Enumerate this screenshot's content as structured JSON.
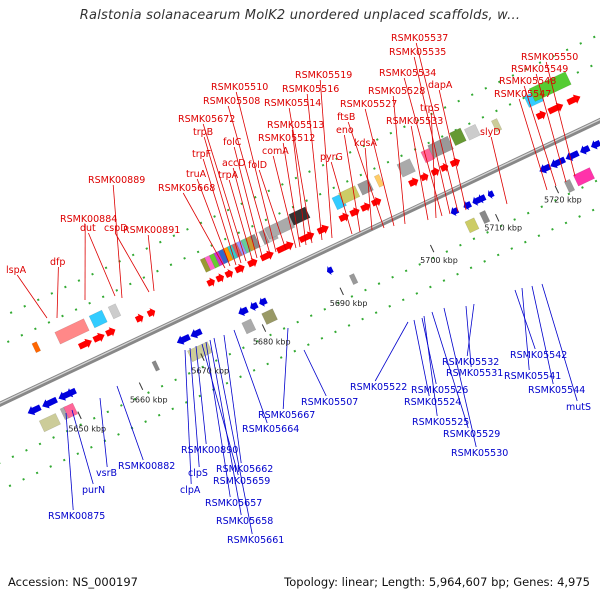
{
  "title": "Ralstonia solanacearum MolK2 unordered unplaced scaffolds, w...",
  "footer": {
    "accession": "Accession: NS_000197",
    "summary": "Topology: linear; Length: 5,964,607 bp; Genes: 4,975"
  },
  "colors": {
    "top_label": "#dd0000",
    "bottom_label": "#0000cc",
    "forward_arrow": "#ff0000",
    "reverse_arrow": "#0000dd",
    "backbone": "#888888"
  },
  "scale_ticks": [
    {
      "label": "5650 kbp"
    },
    {
      "label": "5660 kbp"
    },
    {
      "label": "5670 kbp"
    },
    {
      "label": "5680 kbp"
    },
    {
      "label": "5690 kbp"
    },
    {
      "label": "5700 kbp"
    },
    {
      "label": "5710 kbp"
    },
    {
      "label": "5720 kbp"
    }
  ],
  "top_labels": [
    {
      "text": "lspA"
    },
    {
      "text": "dfp"
    },
    {
      "text": "RSMK00884"
    },
    {
      "text": "dut"
    },
    {
      "text": "RSMK00889"
    },
    {
      "text": "cspD"
    },
    {
      "text": "RSMK00891"
    },
    {
      "text": "RSMK05668"
    },
    {
      "text": "truA"
    },
    {
      "text": "trpF"
    },
    {
      "text": "trpB"
    },
    {
      "text": "RSMK05672"
    },
    {
      "text": "trpA"
    },
    {
      "text": "accD"
    },
    {
      "text": "folC"
    },
    {
      "text": "RSMK05508"
    },
    {
      "text": "RSMK05510"
    },
    {
      "text": "folD"
    },
    {
      "text": "comA"
    },
    {
      "text": "RSMK05512"
    },
    {
      "text": "RSMK05513"
    },
    {
      "text": "RSMK05514"
    },
    {
      "text": "RSMK05516"
    },
    {
      "text": "RSMK05519"
    },
    {
      "text": "pyrG"
    },
    {
      "text": "eno"
    },
    {
      "text": "kdsA"
    },
    {
      "text": "ftsB"
    },
    {
      "text": "RSMK05527"
    },
    {
      "text": "RSMK05528"
    },
    {
      "text": "RSMK05533"
    },
    {
      "text": "trpS"
    },
    {
      "text": "RSMK05534"
    },
    {
      "text": "RSMK05535"
    },
    {
      "text": "RSMK05537"
    },
    {
      "text": "dapA"
    },
    {
      "text": "slyD"
    },
    {
      "text": "RSMK05547"
    },
    {
      "text": "RSMK05548"
    },
    {
      "text": "RSMK05549"
    },
    {
      "text": "RSMK05550"
    }
  ],
  "bottom_labels": [
    {
      "text": "RSMK00875"
    },
    {
      "text": "purN"
    },
    {
      "text": "vsrB"
    },
    {
      "text": "RSMK00882"
    },
    {
      "text": "clpA"
    },
    {
      "text": "clpS"
    },
    {
      "text": "RSMK00890"
    },
    {
      "text": "RSMK05659"
    },
    {
      "text": "RSMK05657"
    },
    {
      "text": "RSMK05658"
    },
    {
      "text": "RSMK05661"
    },
    {
      "text": "RSMK05662"
    },
    {
      "text": "RSMK05664"
    },
    {
      "text": "RSMK05667"
    },
    {
      "text": "RSMK05507"
    },
    {
      "text": "RSMK05522"
    },
    {
      "text": "RSMK05524"
    },
    {
      "text": "RSMK05526"
    },
    {
      "text": "RSMK05525"
    },
    {
      "text": "RSMK05529"
    },
    {
      "text": "RSMK05530"
    },
    {
      "text": "RSMK05531"
    },
    {
      "text": "RSMK05532"
    },
    {
      "text": "RSMK05542"
    },
    {
      "text": "RSMK05541"
    },
    {
      "text": "RSMK05544"
    },
    {
      "text": "mutS"
    }
  ]
}
